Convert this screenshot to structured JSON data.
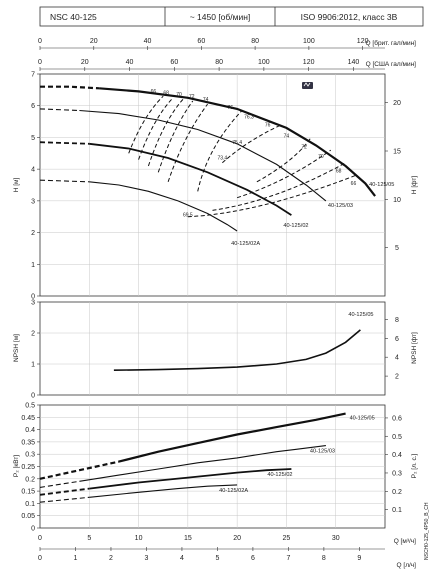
{
  "header": {
    "model": "NSC 40-125",
    "speed": "~ 1450 [об/мин]",
    "standard": "ISO 9906:2012, класс 3B"
  },
  "top_axes": {
    "imp_label": "Q [брит. гал/мин]",
    "imp_ticks": [
      "0",
      "20",
      "40",
      "60",
      "80",
      "100",
      "120"
    ],
    "us_label": "Q [США гал/мин]",
    "us_ticks": [
      "0",
      "20",
      "40",
      "60",
      "80",
      "100",
      "120",
      "140"
    ]
  },
  "bottom_axes": {
    "m3h_label": "Q [м³/ч]",
    "m3h_ticks": [
      "0",
      "5",
      "10",
      "15",
      "20",
      "25",
      "30"
    ],
    "ls_label": "Q [л/ч]",
    "ls_ticks": [
      "0",
      "1",
      "2",
      "3",
      "4",
      "5",
      "6",
      "7",
      "8",
      "9"
    ]
  },
  "panels": {
    "head": {
      "ylabel": "H [м]",
      "ylabel_right": "H [фт]",
      "yticks": [
        "0",
        "1",
        "2",
        "3",
        "4",
        "5",
        "6",
        "7"
      ],
      "yticks_right": [
        "5",
        "10",
        "15",
        "20"
      ]
    },
    "npsh": {
      "ylabel": "NPSH [м]",
      "ylabel_right": "NPSH [фт]",
      "yticks": [
        "0",
        "1",
        "2",
        "3"
      ],
      "yticks_right": [
        "2",
        "4",
        "6",
        "8"
      ]
    },
    "power": {
      "ylabel": "P₂ [кВт]",
      "ylabel_right": "P₂ [л. с.]",
      "yticks": [
        "0",
        "0.05",
        "0.1",
        "0.15",
        "0.2",
        "0.25",
        "0.3",
        "0.35",
        "0.4",
        "0.45",
        "0.5"
      ],
      "yticks_right": [
        "0.1",
        "0.2",
        "0.3",
        "0.4",
        "0.5",
        "0.6"
      ]
    }
  },
  "side_code": "NSCH0-125_4P50_B_CH",
  "chart_data": [
    {
      "type": "line",
      "panel": "head",
      "xlabel": "Q [м³/ч]",
      "ylabel": "H [м]",
      "xlim": [
        0,
        35
      ],
      "ylim": [
        0,
        7
      ],
      "series": [
        {
          "name": "40-125/05",
          "dashed_until": 6,
          "points": [
            [
              0,
              6.6
            ],
            [
              3,
              6.6
            ],
            [
              6,
              6.55
            ],
            [
              10,
              6.45
            ],
            [
              15,
              6.25
            ],
            [
              20,
              5.9
            ],
            [
              25,
              5.3
            ],
            [
              28,
              4.75
            ],
            [
              31,
              4.1
            ],
            [
              33,
              3.55
            ],
            [
              34,
              3.15
            ]
          ]
        },
        {
          "name": "40-125/03",
          "dashed_until": 4,
          "points": [
            [
              0,
              5.9
            ],
            [
              4,
              5.85
            ],
            [
              8,
              5.75
            ],
            [
              12,
              5.55
            ],
            [
              16,
              5.25
            ],
            [
              20,
              4.8
            ],
            [
              24,
              4.15
            ],
            [
              27,
              3.5
            ],
            [
              29,
              3.0
            ]
          ]
        },
        {
          "name": "40-125/02",
          "dashed_until": 5,
          "points": [
            [
              0,
              4.85
            ],
            [
              5,
              4.8
            ],
            [
              9,
              4.65
            ],
            [
              13,
              4.35
            ],
            [
              17,
              3.9
            ],
            [
              21,
              3.35
            ],
            [
              24,
              2.85
            ],
            [
              25.5,
              2.55
            ]
          ]
        },
        {
          "name": "40-125/02A",
          "dashed_until": 5,
          "points": [
            [
              0,
              3.65
            ],
            [
              5,
              3.6
            ],
            [
              8,
              3.5
            ],
            [
              11,
              3.3
            ],
            [
              14,
              3.0
            ],
            [
              17,
              2.6
            ],
            [
              19,
              2.25
            ],
            [
              20,
              2.05
            ]
          ]
        }
      ],
      "efficiency_labels": [
        "66",
        "68",
        "70",
        "72",
        "74",
        "76",
        "76.3",
        "76",
        "74",
        "72",
        "70",
        "68",
        "66",
        "75.4",
        "73.4",
        "69.5"
      ]
    },
    {
      "type": "line",
      "panel": "npsh",
      "xlabel": "Q [м³/ч]",
      "ylabel": "NPSH [м]",
      "xlim": [
        0,
        35
      ],
      "ylim": [
        0,
        3
      ],
      "series": [
        {
          "name": "40-125/05",
          "points": [
            [
              7.5,
              0.8
            ],
            [
              12,
              0.82
            ],
            [
              16,
              0.85
            ],
            [
              20,
              0.9
            ],
            [
              24,
              1.0
            ],
            [
              27,
              1.15
            ],
            [
              29,
              1.35
            ],
            [
              31,
              1.7
            ],
            [
              32.5,
              2.1
            ]
          ]
        }
      ]
    },
    {
      "type": "line",
      "panel": "power",
      "xlabel": "Q [м³/ч]",
      "ylabel": "P₂ [кВт]",
      "xlim": [
        0,
        35
      ],
      "ylim": [
        0,
        0.5
      ],
      "series": [
        {
          "name": "40-125/05",
          "dashed_until": 8,
          "points": [
            [
              0,
              0.2
            ],
            [
              4,
              0.235
            ],
            [
              8,
              0.27
            ],
            [
              12,
              0.31
            ],
            [
              16,
              0.345
            ],
            [
              20,
              0.38
            ],
            [
              24,
              0.41
            ],
            [
              28,
              0.44
            ],
            [
              31,
              0.465
            ]
          ]
        },
        {
          "name": "40-125/03",
          "dashed_until": 4,
          "points": [
            [
              0,
              0.165
            ],
            [
              4,
              0.19
            ],
            [
              8,
              0.215
            ],
            [
              12,
              0.24
            ],
            [
              16,
              0.265
            ],
            [
              20,
              0.285
            ],
            [
              24,
              0.31
            ],
            [
              26,
              0.32
            ],
            [
              29,
              0.335
            ]
          ]
        },
        {
          "name": "40-125/02",
          "dashed_until": 5,
          "points": [
            [
              0,
              0.135
            ],
            [
              5,
              0.16
            ],
            [
              10,
              0.185
            ],
            [
              15,
              0.205
            ],
            [
              20,
              0.225
            ],
            [
              23,
              0.235
            ],
            [
              25.5,
              0.24
            ]
          ]
        },
        {
          "name": "40-125/02A",
          "dashed_until": 5,
          "points": [
            [
              0,
              0.105
            ],
            [
              5,
              0.125
            ],
            [
              10,
              0.145
            ],
            [
              14,
              0.16
            ],
            [
              17,
              0.17
            ],
            [
              20,
              0.175
            ]
          ]
        }
      ]
    }
  ]
}
